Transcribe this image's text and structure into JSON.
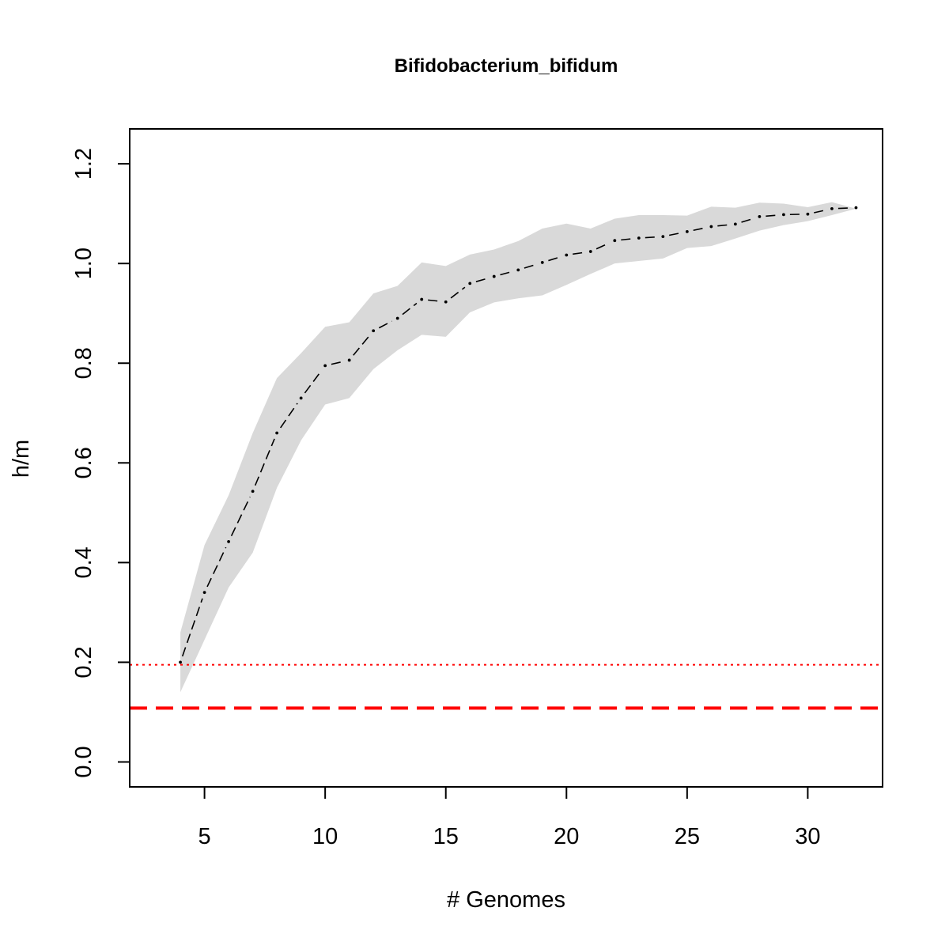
{
  "chart_data": {
    "type": "line",
    "title": "Bifidobacterium_bifidum",
    "xlabel": "# Genomes",
    "ylabel": "h/m",
    "xlim": [
      1.9,
      33.1
    ],
    "ylim": [
      -0.05,
      1.27
    ],
    "xticks": [
      5,
      10,
      15,
      20,
      25,
      30
    ],
    "xtick_labels": [
      "5",
      "10",
      "15",
      "20",
      "25",
      "30"
    ],
    "yticks": [
      0.0,
      0.2,
      0.4,
      0.6,
      0.8,
      1.0,
      1.2
    ],
    "ytick_labels": [
      "0.0",
      "0.2",
      "0.4",
      "0.6",
      "0.8",
      "1.0",
      "1.2"
    ],
    "grid": false,
    "band": {
      "color": "#d9d9d9",
      "x": [
        4,
        5,
        6,
        7,
        8,
        9,
        10,
        11,
        12,
        13,
        14,
        15,
        16,
        17,
        18,
        19,
        20,
        21,
        22,
        23,
        24,
        25,
        26,
        27,
        28,
        29,
        30,
        31,
        32
      ],
      "upper": [
        0.26,
        0.435,
        0.535,
        0.66,
        0.77,
        0.82,
        0.873,
        0.882,
        0.94,
        0.955,
        1.002,
        0.995,
        1.018,
        1.028,
        1.045,
        1.07,
        1.08,
        1.07,
        1.09,
        1.097,
        1.097,
        1.096,
        1.114,
        1.112,
        1.122,
        1.12,
        1.113,
        1.123,
        1.11
      ],
      "lower": [
        0.14,
        0.245,
        0.35,
        0.42,
        0.55,
        0.645,
        0.717,
        0.73,
        0.788,
        0.826,
        0.857,
        0.853,
        0.902,
        0.922,
        0.93,
        0.936,
        0.957,
        0.979,
        1.0,
        1.005,
        1.01,
        1.031,
        1.035,
        1.05,
        1.066,
        1.077,
        1.085,
        1.097,
        1.11
      ]
    },
    "series": [
      {
        "color": "#000000",
        "line_style": "dashed",
        "x": [
          4,
          5,
          6,
          7,
          8,
          9,
          10,
          11,
          12,
          13,
          14,
          15,
          16,
          17,
          18,
          19,
          20,
          21,
          22,
          23,
          24,
          25,
          26,
          27,
          28,
          29,
          30,
          31,
          32
        ],
        "values": [
          0.2,
          0.34,
          0.442,
          0.543,
          0.66,
          0.73,
          0.795,
          0.806,
          0.865,
          0.89,
          0.928,
          0.923,
          0.96,
          0.974,
          0.987,
          1.002,
          1.017,
          1.024,
          1.046,
          1.051,
          1.054,
          1.064,
          1.074,
          1.079,
          1.094,
          1.098,
          1.099,
          1.11,
          1.112
        ]
      }
    ],
    "reference_lines": [
      {
        "y": 0.195,
        "color": "#ff0000",
        "style": "dotted"
      },
      {
        "y": 0.108,
        "color": "#ff0000",
        "style": "dashed"
      }
    ]
  }
}
